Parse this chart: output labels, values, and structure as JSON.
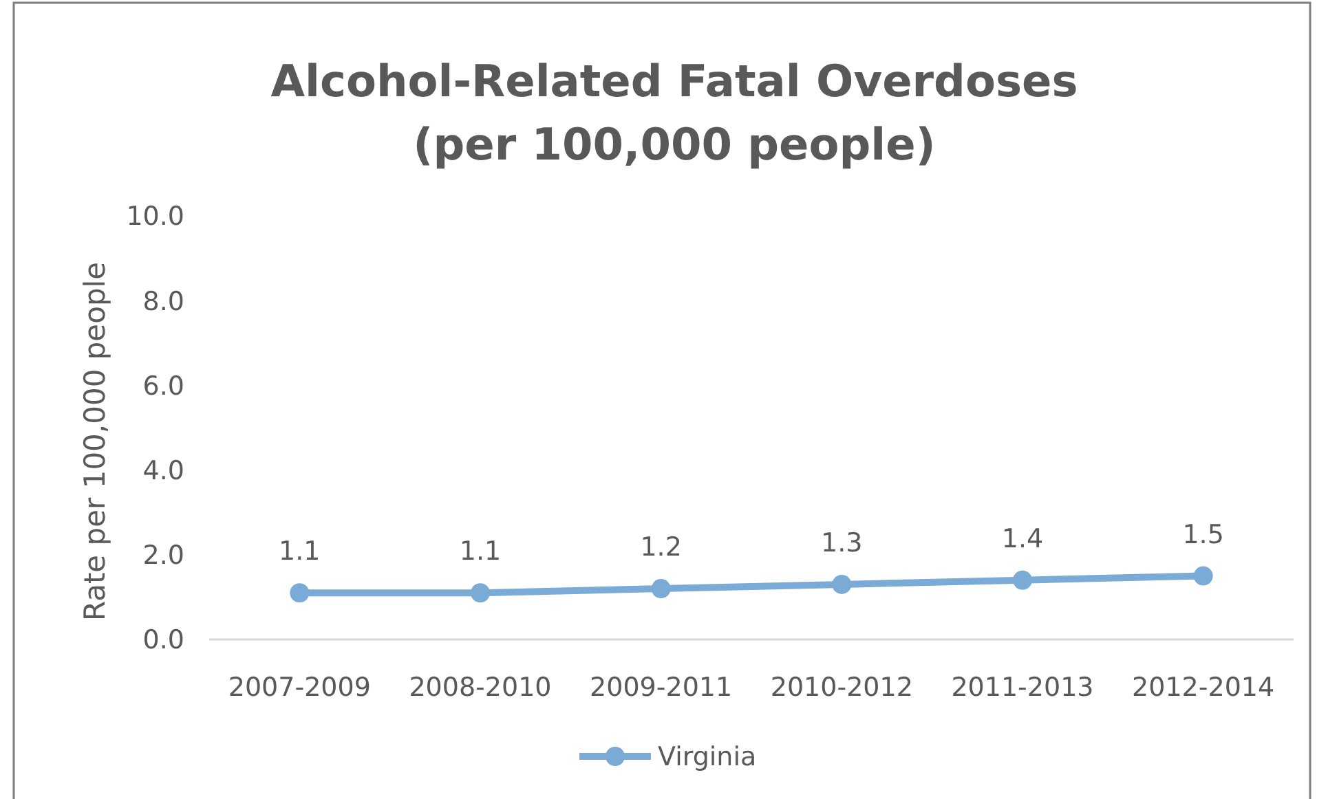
{
  "chart_data": {
    "type": "line",
    "title": "Alcohol-Related Fatal Overdoses\n(per 100,000 people)",
    "ylabel": "Rate per 100,000 people",
    "categories": [
      "2007-2009",
      "2008-2010",
      "2009-2011",
      "2010-2012",
      "2011-2013",
      "2012-2014"
    ],
    "series": [
      {
        "name": "Virginia",
        "color": "#7aaad6",
        "values": [
          1.1,
          1.1,
          1.2,
          1.3,
          1.4,
          1.5
        ]
      }
    ],
    "ylim": [
      0,
      10
    ],
    "yticks": [
      {
        "value": 0,
        "label": "0.0"
      },
      {
        "value": 2,
        "label": "2.0"
      },
      {
        "value": 4,
        "label": "4.0"
      },
      {
        "value": 6,
        "label": "6.0"
      },
      {
        "value": 8,
        "label": "8.0"
      },
      {
        "value": 10,
        "label": "10.0"
      }
    ],
    "grid": false,
    "legend": "bottom",
    "marker": "circle",
    "line_style": "solid",
    "data_labels": true
  }
}
